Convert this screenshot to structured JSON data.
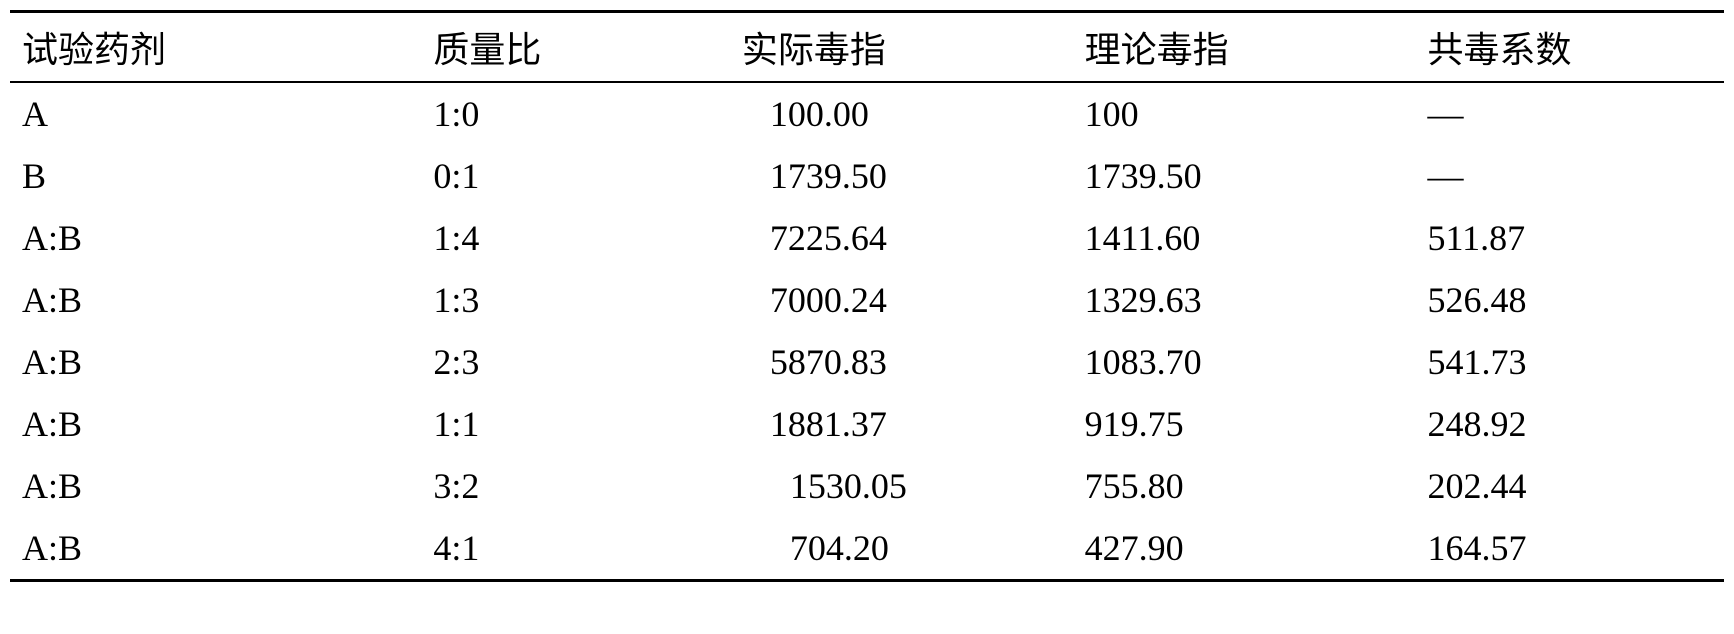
{
  "table": {
    "columns": [
      "试验药剂",
      "质量比",
      "实际毒指",
      "理论毒指",
      "共毒系数"
    ],
    "rows": [
      {
        "agent": "A",
        "ratio": "1:0",
        "actual": "100.00",
        "theory": "100",
        "coeff": "—",
        "indent": false
      },
      {
        "agent": "B",
        "ratio": "0:1",
        "actual": "1739.50",
        "theory": "1739.50",
        "coeff": "—",
        "indent": false
      },
      {
        "agent": "A:B",
        "ratio": "1:4",
        "actual": "7225.64",
        "theory": "1411.60",
        "coeff": "511.87",
        "indent": false
      },
      {
        "agent": "A:B",
        "ratio": "1:3",
        "actual": "7000.24",
        "theory": "1329.63",
        "coeff": "526.48",
        "indent": false
      },
      {
        "agent": "A:B",
        "ratio": "2:3",
        "actual": "5870.83",
        "theory": "1083.70",
        "coeff": "541.73",
        "indent": false
      },
      {
        "agent": "A:B",
        "ratio": "1:1",
        "actual": "1881.37",
        "theory": "919.75",
        "coeff": "248.92",
        "indent": false
      },
      {
        "agent": "A:B",
        "ratio": "3:2",
        "actual": "1530.05",
        "theory": "755.80",
        "coeff": "202.44",
        "indent": true
      },
      {
        "agent": "A:B",
        "ratio": "4:1",
        "actual": "704.20",
        "theory": "427.90",
        "coeff": "164.57",
        "indent": true
      }
    ],
    "styling": {
      "border_top_width": 3,
      "border_bottom_width": 3,
      "header_border_width": 2,
      "font_size": 36,
      "font_family": "SimSun",
      "text_color": "#000000",
      "background_color": "#ffffff",
      "column_widths_pct": [
        24,
        18,
        20,
        20,
        18
      ]
    }
  }
}
